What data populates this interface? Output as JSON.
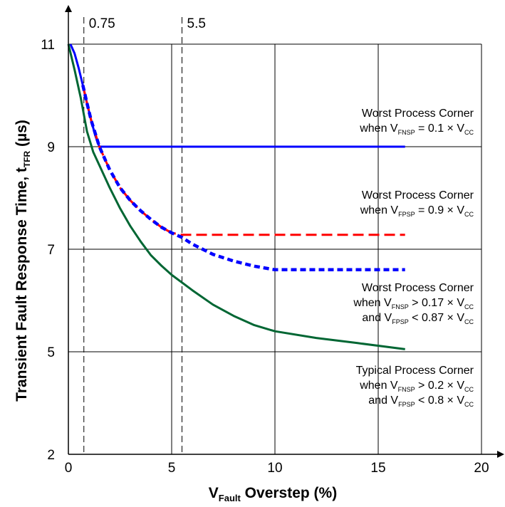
{
  "chart_data": {
    "type": "line",
    "xlabel": {
      "main": "V",
      "sub": "Fault",
      "rest": " Overstep (%)"
    },
    "ylabel": {
      "main": "Transient Fault Response Time, t",
      "sub": "TFR",
      "rest": " (µs)"
    },
    "xlim": [
      0,
      20
    ],
    "ylim": [
      2,
      11
    ],
    "y_scale_breaks": [
      [
        2,
        5
      ],
      [
        5,
        11
      ]
    ],
    "x_ticks": [
      0,
      5,
      10,
      15,
      20
    ],
    "y_ticks": [
      2,
      5,
      7,
      9,
      11
    ],
    "x_tick_labels": [
      "0",
      "5",
      "10",
      "15",
      "20"
    ],
    "y_tick_labels": [
      "2",
      "5",
      "7",
      "9",
      "11"
    ],
    "grid": true,
    "reference_lines": [
      {
        "x": 0.75,
        "label": "0.75",
        "style": "dashed"
      },
      {
        "x": 5.5,
        "label": "5.5",
        "style": "dashed"
      }
    ],
    "series": [
      {
        "color": "#0000ff",
        "style": "solid",
        "annotation": [
          {
            "text": "Worst Process Corner"
          },
          {
            "parts": [
              [
                "when V",
                ""
              ],
              [
                "FNSP",
                "sub"
              ],
              [
                " = 0.1 × V",
                ""
              ],
              [
                "CC",
                "sub"
              ]
            ]
          }
        ],
        "x": [
          0.1,
          0.3,
          0.5,
          0.7,
          0.9,
          1.1,
          1.3,
          1.5,
          5,
          10,
          16.3
        ],
        "y": [
          11.0,
          10.82,
          10.53,
          10.2,
          9.85,
          9.52,
          9.22,
          9.0,
          9.0,
          9.0,
          9.0
        ]
      },
      {
        "color": "#ff0000",
        "style": "dashed",
        "annotation": [
          {
            "text": "Worst Process Corner"
          },
          {
            "parts": [
              [
                "when V",
                ""
              ],
              [
                "FPSP",
                "sub"
              ],
              [
                " = 0.9 × V",
                ""
              ],
              [
                "CC",
                "sub"
              ]
            ]
          }
        ],
        "x": [
          0.7,
          0.9,
          1.1,
          1.5,
          2,
          2.5,
          3,
          3.5,
          4,
          4.5,
          5,
          5.5,
          8,
          10,
          16.3
        ],
        "y": [
          10.2,
          9.85,
          9.52,
          9.0,
          8.55,
          8.2,
          7.95,
          7.75,
          7.58,
          7.43,
          7.32,
          7.28,
          7.28,
          7.28,
          7.28
        ]
      },
      {
        "color": "#0000ff",
        "style": "dotted-heavy",
        "annotation": [
          {
            "text": "Worst Process Corner"
          },
          {
            "parts": [
              [
                "when V",
                ""
              ],
              [
                "FNSP",
                "sub"
              ],
              [
                " > 0.17 × V",
                ""
              ],
              [
                "CC",
                "sub"
              ]
            ]
          },
          {
            "parts": [
              [
                "and V",
                ""
              ],
              [
                "FPSP",
                "sub"
              ],
              [
                " < 0.87 × V",
                ""
              ],
              [
                "CC",
                "sub"
              ]
            ]
          }
        ],
        "x": [
          0.7,
          0.9,
          1.1,
          1.5,
          2,
          2.5,
          3,
          3.5,
          4,
          4.5,
          5,
          5.5,
          6,
          7,
          8,
          9,
          10,
          12,
          14,
          16.3
        ],
        "y": [
          10.2,
          9.85,
          9.52,
          9.0,
          8.55,
          8.2,
          7.95,
          7.75,
          7.58,
          7.43,
          7.32,
          7.23,
          7.1,
          6.9,
          6.77,
          6.67,
          6.6,
          6.6,
          6.6,
          6.6
        ]
      },
      {
        "color": "#006633",
        "style": "solid",
        "annotation": [
          {
            "text": "Typical Process Corner"
          },
          {
            "parts": [
              [
                "when V",
                ""
              ],
              [
                "FNSP",
                "sub"
              ],
              [
                " > 0.2 × V",
                ""
              ],
              [
                "CC",
                "sub"
              ]
            ]
          },
          {
            "parts": [
              [
                "and V",
                ""
              ],
              [
                "FPSP",
                "sub"
              ],
              [
                " < 0.8 × V",
                ""
              ],
              [
                "CC",
                "sub"
              ]
            ]
          }
        ],
        "x": [
          0,
          0.3,
          0.6,
          0.9,
          1.2,
          1.6,
          2,
          2.5,
          3,
          3.5,
          4,
          4.5,
          5,
          6,
          7,
          8,
          9,
          10,
          12,
          14,
          16.3
        ],
        "y": [
          11.0,
          10.5,
          9.95,
          9.3,
          8.9,
          8.55,
          8.2,
          7.8,
          7.45,
          7.15,
          6.88,
          6.68,
          6.5,
          6.2,
          5.92,
          5.7,
          5.52,
          5.4,
          5.27,
          5.17,
          5.05
        ]
      }
    ]
  }
}
